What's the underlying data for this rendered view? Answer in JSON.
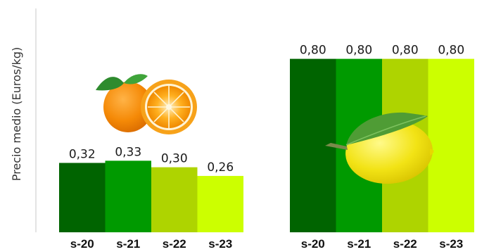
{
  "chart_data": {
    "type": "bar",
    "ylabel": "Precio medio (Euros/kg)",
    "colors": [
      "#006400",
      "#009a00",
      "#aed400",
      "#ccff00"
    ],
    "groups": [
      {
        "fruit_icon": "orange-icon",
        "categories": [
          "s-20",
          "s-21",
          "s-22",
          "s-23"
        ],
        "values": [
          0.32,
          0.33,
          0.3,
          0.26
        ],
        "labels": [
          "0,32",
          "0,33",
          "0,30",
          "0,26"
        ]
      },
      {
        "fruit_icon": "lemon-icon",
        "categories": [
          "s-20",
          "s-21",
          "s-22",
          "s-23"
        ],
        "values": [
          0.8,
          0.8,
          0.8,
          0.8
        ],
        "labels": [
          "0,80",
          "0,80",
          "0,80",
          "0,80"
        ]
      }
    ]
  }
}
